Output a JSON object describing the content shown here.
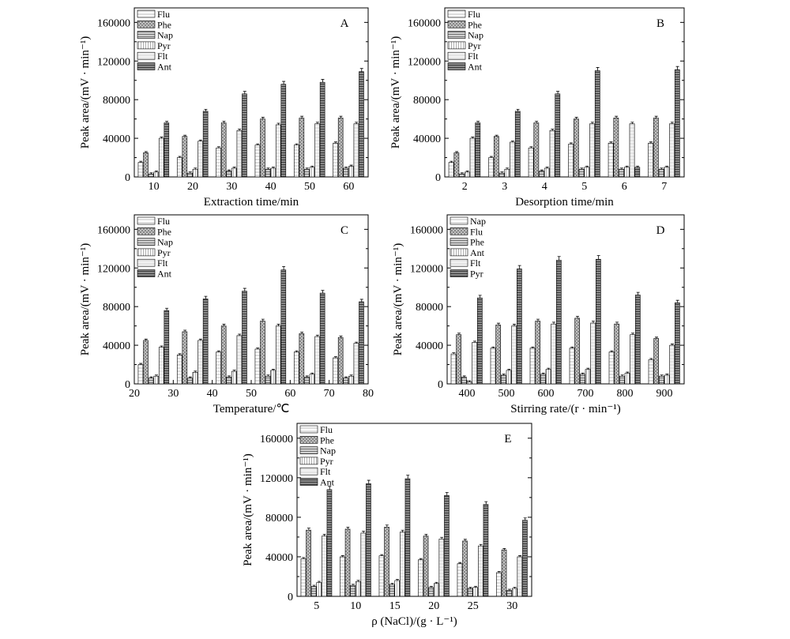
{
  "chart_data": [
    {
      "type": "bar",
      "panel_label": "A",
      "xlabel": "Extraction time/min",
      "ylabel": "Peak area/(mV · min⁻¹)",
      "ylim": [
        0,
        175000
      ],
      "yticks": [
        0,
        40000,
        80000,
        120000,
        160000
      ],
      "categories": [
        "10",
        "20",
        "30",
        "40",
        "50",
        "60"
      ],
      "legend_position": "top-left",
      "series": [
        {
          "name": "Flu",
          "values": [
            15000,
            20000,
            30000,
            33000,
            33000,
            35000
          ]
        },
        {
          "name": "Phe",
          "values": [
            25000,
            42000,
            56000,
            60000,
            61000,
            61000
          ]
        },
        {
          "name": "Nap",
          "values": [
            3000,
            4000,
            6000,
            8000,
            8000,
            9000
          ]
        },
        {
          "name": "Pyr",
          "values": [
            5000,
            8000,
            9000,
            9000,
            10000,
            11000
          ]
        },
        {
          "name": "Flt",
          "values": [
            40000,
            37000,
            48000,
            54000,
            55000,
            55000
          ]
        },
        {
          "name": "Ant",
          "values": [
            56000,
            68000,
            86000,
            96000,
            98000,
            109000
          ]
        }
      ]
    },
    {
      "type": "bar",
      "panel_label": "B",
      "xlabel": "Desorption time/min",
      "ylabel": "Peak area/(mV · min⁻¹)",
      "ylim": [
        0,
        175000
      ],
      "yticks": [
        0,
        40000,
        80000,
        120000,
        160000
      ],
      "categories": [
        "2",
        "3",
        "4",
        "5",
        "6",
        "7"
      ],
      "legend_position": "top-left",
      "series": [
        {
          "name": "Flu",
          "values": [
            15000,
            20000,
            30000,
            34000,
            35000,
            35000
          ]
        },
        {
          "name": "Phe",
          "values": [
            25000,
            42000,
            56000,
            60000,
            61000,
            61000
          ]
        },
        {
          "name": "Nap",
          "values": [
            3000,
            4000,
            6000,
            8000,
            8000,
            8000
          ]
        },
        {
          "name": "Pyr",
          "values": [
            5000,
            8000,
            9000,
            10000,
            10000,
            10000
          ]
        },
        {
          "name": "Flt",
          "values": [
            40000,
            36000,
            48000,
            55000,
            55000,
            55000
          ]
        },
        {
          "name": "Ant",
          "values": [
            56000,
            68000,
            86000,
            110000,
            10000,
            111000
          ]
        }
      ]
    },
    {
      "type": "bar",
      "panel_label": "C",
      "xlabel": "Temperature/℃",
      "ylabel": "Peak area/(mV · min⁻¹)",
      "ylim": [
        0,
        175000
      ],
      "yticks": [
        0,
        40000,
        80000,
        120000,
        160000
      ],
      "xlim": [
        20,
        80
      ],
      "xticks": [
        20,
        30,
        40,
        50,
        60,
        70,
        80
      ],
      "x": [
        25,
        35,
        45,
        55,
        65,
        75
      ],
      "legend_position": "top-left",
      "series": [
        {
          "name": "Flu",
          "values": [
            20000,
            30000,
            33000,
            36000,
            33000,
            27000
          ]
        },
        {
          "name": "Phe",
          "values": [
            45000,
            54000,
            60000,
            65000,
            52000,
            48000
          ]
        },
        {
          "name": "Nap",
          "values": [
            6000,
            6000,
            7000,
            8000,
            7000,
            6000
          ]
        },
        {
          "name": "Pyr",
          "values": [
            8000,
            12000,
            13000,
            14000,
            10000,
            8000
          ]
        },
        {
          "name": "Flt",
          "values": [
            38000,
            45000,
            50000,
            60000,
            49000,
            42000
          ]
        },
        {
          "name": "Ant",
          "values": [
            76000,
            88000,
            96000,
            118000,
            94000,
            85000
          ]
        }
      ]
    },
    {
      "type": "bar",
      "panel_label": "D",
      "xlabel": "Stirring rate/(r · min⁻¹)",
      "ylabel": "Peak area/(mV · min⁻¹)",
      "ylim": [
        0,
        175000
      ],
      "yticks": [
        0,
        40000,
        80000,
        120000,
        160000
      ],
      "categories": [
        "400",
        "500",
        "600",
        "700",
        "800",
        "900"
      ],
      "legend_position": "top-left",
      "series": [
        {
          "name": "Nap",
          "values": [
            31000,
            37000,
            37000,
            37000,
            33000,
            25000
          ]
        },
        {
          "name": "Flu",
          "values": [
            51000,
            61000,
            65000,
            68000,
            62000,
            47000
          ]
        },
        {
          "name": "Phe",
          "values": [
            7000,
            9000,
            10000,
            10000,
            8000,
            8000
          ]
        },
        {
          "name": "Ant",
          "values": [
            2000,
            14000,
            15000,
            15000,
            11000,
            9000
          ]
        },
        {
          "name": "Flt",
          "values": [
            43000,
            60000,
            62000,
            63000,
            51000,
            40000
          ]
        },
        {
          "name": "Pyr",
          "values": [
            89000,
            119000,
            128000,
            129000,
            92000,
            84000
          ]
        }
      ]
    },
    {
      "type": "bar",
      "panel_label": "E",
      "xlabel": "ρ (NaCl)/(g · L⁻¹)",
      "ylabel": "Peak area/(mV · min⁻¹)",
      "ylim": [
        0,
        175000
      ],
      "yticks": [
        0,
        40000,
        80000,
        120000,
        160000
      ],
      "categories": [
        "5",
        "10",
        "15",
        "20",
        "25",
        "30"
      ],
      "legend_position": "top-left",
      "series": [
        {
          "name": "Flu",
          "values": [
            38000,
            40000,
            41000,
            37000,
            33000,
            24000
          ]
        },
        {
          "name": "Phe",
          "values": [
            67000,
            68000,
            70000,
            61000,
            56000,
            47000
          ]
        },
        {
          "name": "Nap",
          "values": [
            10000,
            11000,
            12000,
            9000,
            8000,
            6000
          ]
        },
        {
          "name": "Pyr",
          "values": [
            14000,
            15000,
            16000,
            13000,
            9000,
            8000
          ]
        },
        {
          "name": "Flt",
          "values": [
            61000,
            64000,
            65000,
            58000,
            51000,
            40000
          ]
        },
        {
          "name": "Ant",
          "values": [
            108000,
            114000,
            119000,
            102000,
            93000,
            77000
          ]
        }
      ]
    }
  ]
}
